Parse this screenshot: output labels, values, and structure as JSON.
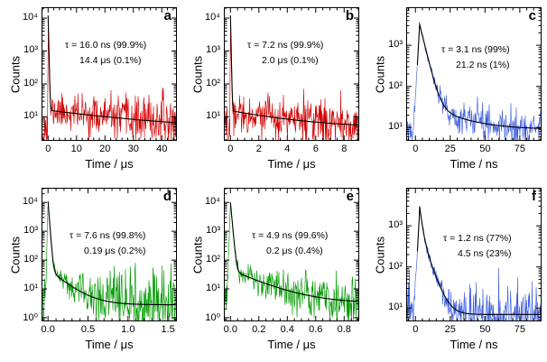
{
  "chart_data": {
    "type": "line",
    "title": "",
    "layout": {
      "rows": 2,
      "cols": 3,
      "y_scale": "log",
      "legend": "none",
      "grid": "off"
    },
    "panels": [
      {
        "id": "a",
        "label": "a",
        "color": "#d40000",
        "xlabel": "Time / μs",
        "ylabel": "Counts",
        "annotation": {
          "line1": "τ = 16.0 ns (99.9%)",
          "line2": "14.4 μs (0.1%)"
        },
        "fit_components": [
          {
            "tau": "16.0 ns",
            "fraction": "99.9%"
          },
          {
            "tau": "14.4 μs",
            "fraction": "0.1%"
          }
        ],
        "xlim": [
          -2,
          45
        ],
        "xticks": [
          0,
          10,
          20,
          30,
          40
        ],
        "xtick_labels": [
          "0",
          "10",
          "20",
          "30",
          "40"
        ],
        "x_minor_step": 2,
        "ylim": [
          2,
          20000
        ],
        "yticks": [
          10,
          100,
          1000,
          10000
        ],
        "ytick_labels": [
          "10¹",
          "10²",
          "10³",
          "10⁴"
        ],
        "model": {
          "t0": 0,
          "rise_tau": 0.02,
          "peak_amp": 12000,
          "peak_tau": 0.12,
          "amp2": 12,
          "tau2": 30,
          "baseline": 4,
          "pre_baseline": 5
        },
        "noise": 2.2,
        "seed": 11
      },
      {
        "id": "b",
        "label": "b",
        "color": "#d40000",
        "xlabel": "Time / μs",
        "ylabel": "Counts",
        "annotation": {
          "line1": "τ = 7.2 ns (99.9%)",
          "line2": "2.0 μs (0.1%)"
        },
        "fit_components": [
          {
            "tau": "7.2 ns",
            "fraction": "99.9%"
          },
          {
            "tau": "2.0 μs",
            "fraction": "0.1%"
          }
        ],
        "xlim": [
          -0.4,
          9
        ],
        "xticks": [
          0,
          2,
          4,
          6,
          8
        ],
        "xtick_labels": [
          "0",
          "2",
          "4",
          "6",
          "8"
        ],
        "x_minor_step": 0.5,
        "ylim": [
          2,
          20000
        ],
        "yticks": [
          10,
          100,
          1000,
          10000
        ],
        "ytick_labels": [
          "10¹",
          "10²",
          "10³",
          "10⁴"
        ],
        "model": {
          "t0": 0,
          "rise_tau": 0.005,
          "peak_amp": 12000,
          "peak_tau": 0.022,
          "amp2": 11,
          "tau2": 4,
          "baseline": 4.5,
          "pre_baseline": 5
        },
        "noise": 2.2,
        "seed": 22
      },
      {
        "id": "c",
        "label": "c",
        "color": "#3f5fdf",
        "xlabel": "Time / ns",
        "ylabel": "Counts",
        "annotation": {
          "line1": "τ = 3.1 ns (99%)",
          "line2": "21.2 ns (1%)"
        },
        "fit_components": [
          {
            "tau": "3.1 ns",
            "fraction": "99%"
          },
          {
            "tau": "21.2 ns",
            "fraction": "1%"
          }
        ],
        "xlim": [
          -6,
          90
        ],
        "xticks": [
          0,
          25,
          50,
          75
        ],
        "xtick_labels": [
          "0",
          "25",
          "50",
          "75"
        ],
        "x_minor_step": 5,
        "ylim": [
          5,
          8000
        ],
        "yticks": [
          10,
          100,
          1000
        ],
        "ytick_labels": [
          "10¹",
          "10²",
          "10³"
        ],
        "model": {
          "t0": 3,
          "rise_tau": 0.7,
          "peak_amp": 3200,
          "peak_tau": 3.1,
          "amp2": 32,
          "tau2": 21.2,
          "baseline": 9,
          "pre_baseline": 7,
          "fit_start": 1.4
        },
        "noise": 1.9,
        "seed": 33
      },
      {
        "id": "d",
        "label": "d",
        "color": "#009c00",
        "xlabel": "Time / μs",
        "ylabel": "Counts",
        "annotation": {
          "line1": "τ = 7.6 ns (99.8%)",
          "line2": "0.19 μs (0.2%)"
        },
        "fit_components": [
          {
            "tau": "7.6 ns",
            "fraction": "99.8%"
          },
          {
            "tau": "0.19 μs",
            "fraction": "0.2%"
          }
        ],
        "xlim": [
          -0.07,
          1.6
        ],
        "xticks": [
          0,
          0.5,
          1,
          1.5
        ],
        "xtick_labels": [
          "0.0",
          "0.5",
          "1.0",
          "1.5"
        ],
        "x_minor_step": 0.1,
        "ylim": [
          0.8,
          30000
        ],
        "yticks": [
          1,
          10,
          100,
          1000,
          10000
        ],
        "ytick_labels": [
          "10⁰",
          "10¹",
          "10²",
          "10³",
          "10⁴"
        ],
        "model": {
          "t0": 0,
          "rise_tau": 0.004,
          "peak_amp": 11000,
          "peak_tau": 0.012,
          "amp2": 45,
          "tau2": 0.19,
          "baseline": 2.8,
          "pre_baseline": 3
        },
        "noise": 2.2,
        "seed": 44
      },
      {
        "id": "e",
        "label": "e",
        "color": "#009c00",
        "xlabel": "Time / μs",
        "ylabel": "Counts",
        "annotation": {
          "line1": "τ = 4.9 ns (99.6%)",
          "line2": "0.2 μs (0.4%)"
        },
        "fit_components": [
          {
            "tau": "4.9 ns",
            "fraction": "99.6%"
          },
          {
            "tau": "0.2 μs",
            "fraction": "0.4%"
          }
        ],
        "xlim": [
          -0.04,
          0.9
        ],
        "xticks": [
          0,
          0.2,
          0.4,
          0.6,
          0.8
        ],
        "xtick_labels": [
          "0.0",
          "0.2",
          "0.4",
          "0.6",
          "0.8"
        ],
        "x_minor_step": 0.05,
        "ylim": [
          0.8,
          30000
        ],
        "yticks": [
          1,
          10,
          100,
          1000,
          10000
        ],
        "ytick_labels": [
          "10⁰",
          "10¹",
          "10²",
          "10³",
          "10⁴"
        ],
        "model": {
          "t0": 0,
          "rise_tau": 0.003,
          "peak_amp": 10000,
          "peak_tau": 0.008,
          "amp2": 42,
          "tau2": 0.2,
          "baseline": 3.2,
          "pre_baseline": 3.5
        },
        "noise": 2.2,
        "seed": 55
      },
      {
        "id": "f",
        "label": "f",
        "color": "#3f5fdf",
        "xlabel": "Time / ns",
        "ylabel": "Counts",
        "annotation": {
          "line1": "τ = 1.2 ns (77%)",
          "line2": "4.5 ns (23%)"
        },
        "fit_components": [
          {
            "tau": "1.2 ns",
            "fraction": "77%"
          },
          {
            "tau": "4.5 ns",
            "fraction": "23%"
          }
        ],
        "xlim": [
          -6,
          90
        ],
        "xticks": [
          0,
          25,
          50,
          75
        ],
        "xtick_labels": [
          "0",
          "25",
          "50",
          "75"
        ],
        "x_minor_step": 5,
        "ylim": [
          5,
          8000
        ],
        "yticks": [
          10,
          100,
          1000
        ],
        "ytick_labels": [
          "10¹",
          "10²",
          "10³"
        ],
        "model": {
          "t0": 3,
          "rise_tau": 0.7,
          "peak_amp": 2300,
          "peak_tau": 1.4,
          "amp2": 700,
          "tau2": 4.5,
          "baseline": 7,
          "pre_baseline": 6,
          "fit_start": 1.4
        },
        "noise": 1.9,
        "seed": 66
      }
    ]
  }
}
